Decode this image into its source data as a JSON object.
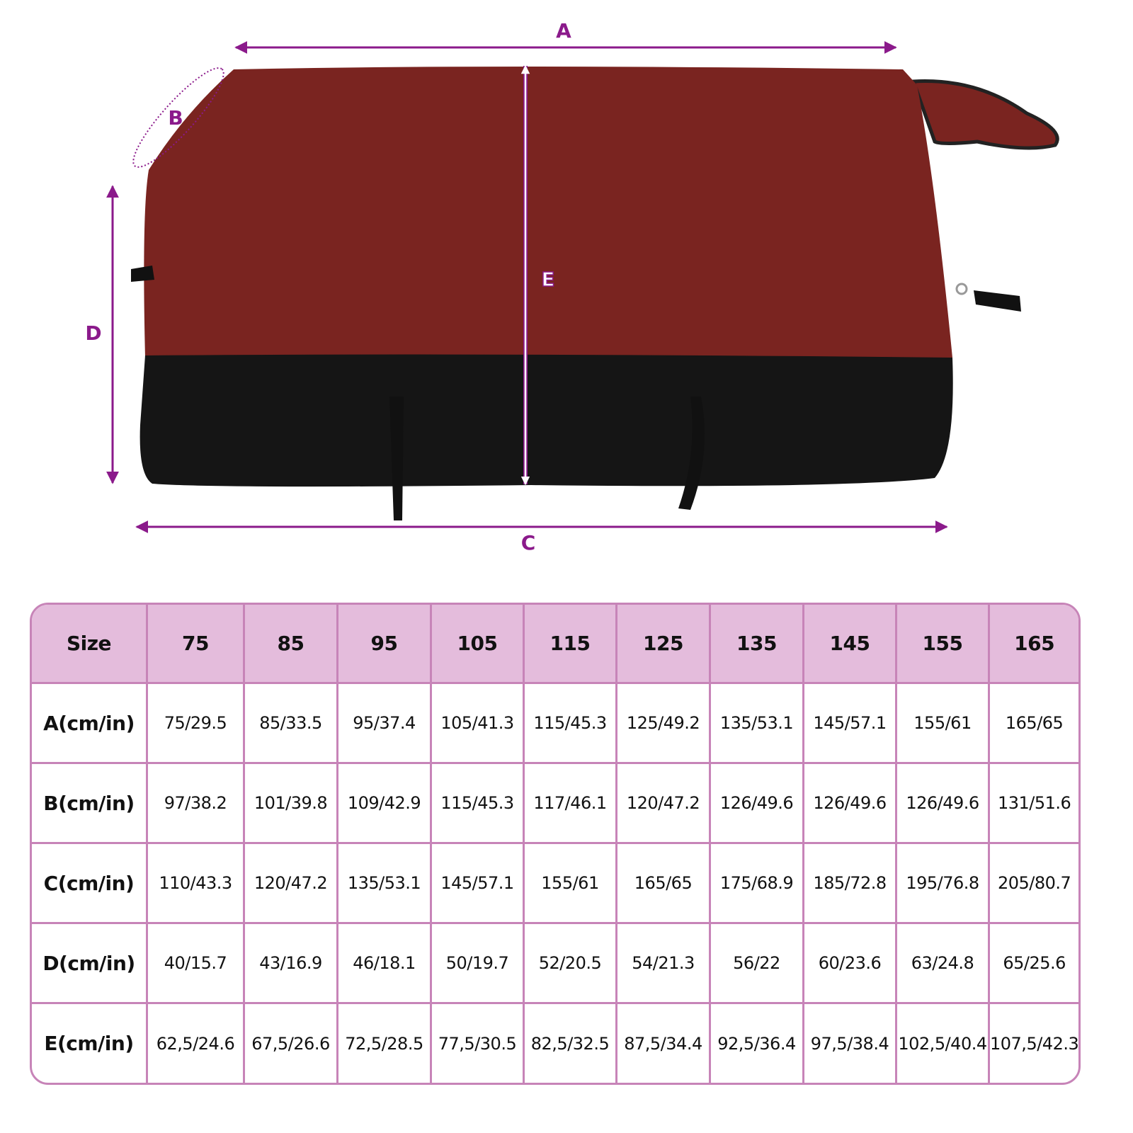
{
  "diagram": {
    "labels": {
      "A": "A",
      "B": "B",
      "C": "C",
      "D": "D",
      "E": "E"
    },
    "colors": {
      "dimension": "#8b1a8b",
      "blanket_top": "#7a2420",
      "blanket_bottom": "#1a1a1a",
      "table_border": "#c784b8",
      "table_header": "#e4bcdc"
    }
  },
  "table": {
    "header": [
      "Size",
      "75",
      "85",
      "95",
      "105",
      "115",
      "125",
      "135",
      "145",
      "155",
      "165"
    ],
    "rows": [
      {
        "label": "A(cm/in)",
        "values": [
          "75/29.5",
          "85/33.5",
          "95/37.4",
          "105/41.3",
          "115/45.3",
          "125/49.2",
          "135/53.1",
          "145/57.1",
          "155/61",
          "165/65"
        ]
      },
      {
        "label": "B(cm/in)",
        "values": [
          "97/38.2",
          "101/39.8",
          "109/42.9",
          "115/45.3",
          "117/46.1",
          "120/47.2",
          "126/49.6",
          "126/49.6",
          "126/49.6",
          "131/51.6"
        ]
      },
      {
        "label": "C(cm/in)",
        "values": [
          "110/43.3",
          "120/47.2",
          "135/53.1",
          "145/57.1",
          "155/61",
          "165/65",
          "175/68.9",
          "185/72.8",
          "195/76.8",
          "205/80.7"
        ]
      },
      {
        "label": "D(cm/in)",
        "values": [
          "40/15.7",
          "43/16.9",
          "46/18.1",
          "50/19.7",
          "52/20.5",
          "54/21.3",
          "56/22",
          "60/23.6",
          "63/24.8",
          "65/25.6"
        ]
      },
      {
        "label": "E(cm/in)",
        "values": [
          "62,5/24.6",
          "67,5/26.6",
          "72,5/28.5",
          "77,5/30.5",
          "82,5/32.5",
          "87,5/34.4",
          "92,5/36.4",
          "97,5/38.4",
          "102,5/40.4",
          "107,5/42.3"
        ]
      }
    ]
  }
}
